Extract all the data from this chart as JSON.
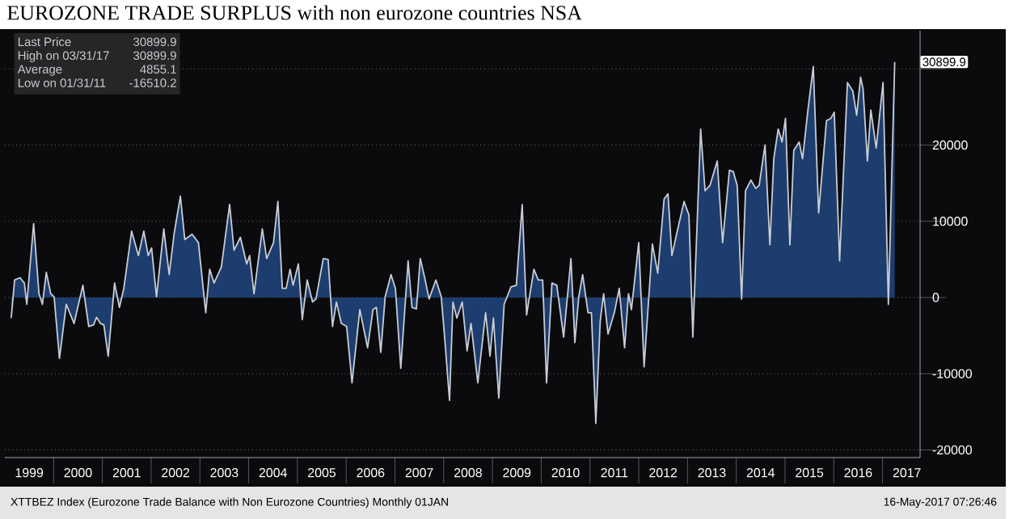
{
  "chart_data": {
    "type": "area",
    "title": "EUROZONE TRADE SURPLUS with non eurozone countries NSA",
    "annotations": [
      "Last Price",
      "30899.9",
      "High on 03/31/17",
      "30899.9",
      "Average",
      "4855.1",
      "Low on 01/31/11",
      "-16510.2",
      "XTTBEZ Index (Eurozone Trade Balance with Non Eurozone Countries)  Monthly 01JAN",
      "16-May-2017 07:26:46",
      "30899.9"
    ],
    "x": [
      1999.13,
      1999.2,
      1999.31,
      1999.4,
      1999.45,
      1999.59,
      1999.7,
      1999.77,
      1999.85,
      1999.94,
      2000.01,
      2000.12,
      2000.26,
      2000.42,
      2000.6,
      2000.72,
      2000.82,
      2000.88,
      2000.96,
      2001.03,
      2001.12,
      2001.25,
      2001.35,
      2001.44,
      2001.6,
      2001.74,
      2001.85,
      2001.94,
      2002.01,
      2002.11,
      2002.26,
      2002.37,
      2002.47,
      2002.6,
      2002.69,
      2002.84,
      2002.97,
      2003.12,
      2003.2,
      2003.29,
      2003.44,
      2003.61,
      2003.7,
      2003.83,
      2003.96,
      2004.02,
      2004.11,
      2004.28,
      2004.37,
      2004.51,
      2004.6,
      2004.69,
      2004.77,
      2004.85,
      2004.91,
      2005.02,
      2005.1,
      2005.2,
      2005.31,
      2005.38,
      2005.53,
      2005.63,
      2005.72,
      2005.8,
      2005.9,
      2006.01,
      2006.12,
      2006.28,
      2006.44,
      2006.55,
      2006.62,
      2006.71,
      2006.8,
      2006.92,
      2007.01,
      2007.12,
      2007.27,
      2007.35,
      2007.44,
      2007.52,
      2007.62,
      2007.7,
      2007.84,
      2007.95,
      2008.01,
      2008.12,
      2008.19,
      2008.27,
      2008.38,
      2008.48,
      2008.56,
      2008.7,
      2008.86,
      2008.95,
      2009.02,
      2009.13,
      2009.24,
      2009.38,
      2009.49,
      2009.61,
      2009.7,
      2009.85,
      2009.94,
      2010.03,
      2010.11,
      2010.22,
      2010.32,
      2010.46,
      2010.61,
      2010.69,
      2010.77,
      2010.85,
      2010.96,
      2011.03,
      2011.12,
      2011.21,
      2011.28,
      2011.37,
      2011.5,
      2011.6,
      2011.71,
      2011.79,
      2011.85,
      2012.0,
      2012.11,
      2012.28,
      2012.39,
      2012.52,
      2012.6,
      2012.68,
      2012.79,
      2012.93,
      2013.03,
      2013.11,
      2013.27,
      2013.36,
      2013.46,
      2013.61,
      2013.72,
      2013.86,
      2013.94,
      2014.02,
      2014.11,
      2014.19,
      2014.3,
      2014.4,
      2014.47,
      2014.59,
      2014.69,
      2014.77,
      2014.86,
      2014.94,
      2015.01,
      2015.1,
      2015.18,
      2015.29,
      2015.36,
      2015.47,
      2015.58,
      2015.69,
      2015.85,
      2015.94,
      2016.01,
      2016.12,
      2016.28,
      2016.39,
      2016.47,
      2016.55,
      2016.6,
      2016.69,
      2016.76,
      2016.87,
      2017.01,
      2017.12,
      2017.25
    ],
    "series": [
      {
        "color": "#1d3d6e",
        "values": [
          -2700,
          2300,
          2600,
          1900,
          -900,
          9700,
          500,
          -900,
          3300,
          500,
          100,
          -8000,
          -900,
          -3400,
          1600,
          -3800,
          -3600,
          -2600,
          -3400,
          -3600,
          -7700,
          1900,
          -1300,
          1200,
          8700,
          5500,
          8700,
          5500,
          6500,
          100,
          9000,
          3000,
          8300,
          13300,
          7600,
          8300,
          7200,
          -2000,
          3700,
          1900,
          4000,
          12200,
          6200,
          7900,
          4400,
          5500,
          500,
          9000,
          5100,
          7200,
          12600,
          1200,
          1200,
          3700,
          1600,
          4400,
          -2900,
          2300,
          -600,
          -200,
          5100,
          5000,
          -3800,
          -600,
          -3400,
          -3800,
          -11200,
          -1600,
          -6600,
          -1600,
          -1300,
          -7200,
          100,
          3000,
          1200,
          -9300,
          4800,
          -1300,
          -1500,
          5100,
          2300,
          -200,
          2300,
          100,
          -4500,
          -13500,
          -600,
          -2700,
          -600,
          -7000,
          -3400,
          -11200,
          -2000,
          -7700,
          -2700,
          -13200,
          -900,
          1400,
          1600,
          12200,
          -2300,
          3700,
          2300,
          2300,
          -11200,
          1900,
          1600,
          -5200,
          5100,
          -5900,
          100,
          3000,
          -2000,
          -2000,
          -16510.2,
          -3100,
          500,
          -4800,
          -2000,
          1200,
          -6600,
          500,
          -1600,
          7200,
          -9100,
          7000,
          3200,
          12900,
          13600,
          5500,
          8700,
          12600,
          10800,
          -5200,
          22100,
          14000,
          14700,
          17900,
          7200,
          16700,
          16500,
          14700,
          -200,
          14000,
          15400,
          14300,
          14700,
          20000,
          6900,
          18200,
          22100,
          20400,
          23500,
          6900,
          19300,
          20400,
          18200,
          24600,
          30300,
          11100,
          23200,
          23500,
          24300,
          4800,
          28200,
          27100,
          23900,
          28900,
          27400,
          17900,
          24600,
          19600,
          28200,
          -900,
          30899.9
        ]
      }
    ],
    "xlim": [
      1999,
      2017.77
    ],
    "xticks": [
      {
        "value": 1999.5,
        "label": "1999"
      },
      {
        "value": 2000.5,
        "label": "2000"
      },
      {
        "value": 2001.5,
        "label": "2001"
      },
      {
        "value": 2002.5,
        "label": "2002"
      },
      {
        "value": 2003.5,
        "label": "2003"
      },
      {
        "value": 2004.5,
        "label": "2004"
      },
      {
        "value": 2005.5,
        "label": "2005"
      },
      {
        "value": 2006.5,
        "label": "2006"
      },
      {
        "value": 2007.5,
        "label": "2007"
      },
      {
        "value": 2008.5,
        "label": "2008"
      },
      {
        "value": 2009.5,
        "label": "2009"
      },
      {
        "value": 2010.5,
        "label": "2010"
      },
      {
        "value": 2011.5,
        "label": "2011"
      },
      {
        "value": 2012.5,
        "label": "2012"
      },
      {
        "value": 2013.5,
        "label": "2013"
      },
      {
        "value": 2014.5,
        "label": "2014"
      },
      {
        "value": 2015.5,
        "label": "2015"
      },
      {
        "value": 2016.5,
        "label": "2016"
      },
      {
        "value": 2017.5,
        "label": "2017"
      },
      {
        "value": 2000,
        "label": null
      },
      {
        "value": 2001,
        "label": null
      },
      {
        "value": 2002,
        "label": null
      },
      {
        "value": 2003,
        "label": null
      },
      {
        "value": 2004,
        "label": null
      },
      {
        "value": 2005,
        "label": null
      },
      {
        "value": 2006,
        "label": null
      },
      {
        "value": 2007,
        "label": null
      },
      {
        "value": 2008,
        "label": null
      },
      {
        "value": 2009,
        "label": null
      },
      {
        "value": 2010,
        "label": null
      },
      {
        "value": 2011,
        "label": null
      },
      {
        "value": 2012,
        "label": null
      },
      {
        "value": 2013,
        "label": null
      },
      {
        "value": 2014,
        "label": null
      },
      {
        "value": 2015,
        "label": null
      },
      {
        "value": 2016,
        "label": null
      },
      {
        "value": 2017,
        "label": null
      }
    ],
    "ylim": [
      -21000,
      35000
    ],
    "yticks": [
      -20000,
      -10000,
      0,
      10000,
      20000,
      {
        "value": 30000,
        "label": null
      }
    ],
    "grid": "y"
  }
}
